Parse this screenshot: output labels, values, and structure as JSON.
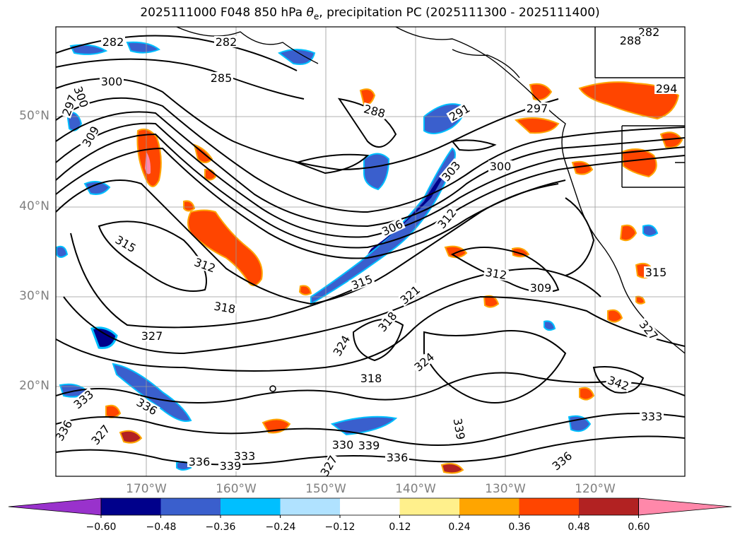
{
  "title": {
    "init": "2025111000 F048 850 hPa ",
    "theta_sym": "θ",
    "theta_sub": "e",
    "rest": ", precipitation PC (2025111300 - 2025111400)"
  },
  "axes": {
    "lat_labels": [
      "50°N",
      "40°N",
      "30°N",
      "20°N"
    ],
    "lon_labels": [
      "170°W",
      "160°W",
      "150°W",
      "140°W",
      "130°W",
      "120°W"
    ]
  },
  "colorbar": {
    "ticks": [
      "−0.60",
      "−0.48",
      "−0.36",
      "−0.24",
      "−0.12",
      "0.12",
      "0.24",
      "0.36",
      "0.48",
      "0.60"
    ],
    "colors": [
      "#9932cc",
      "#00008b",
      "#3a5fcd",
      "#00bfff",
      "#b0e2ff",
      "#ffffff",
      "#fff08c",
      "#ffa500",
      "#ff4500",
      "#b22222",
      "#ff88aa"
    ]
  },
  "contour_labels": [
    {
      "text": "282"
    },
    {
      "text": "282"
    },
    {
      "text": "285"
    },
    {
      "text": "300"
    },
    {
      "text": "297"
    },
    {
      "text": "300"
    },
    {
      "text": "309"
    },
    {
      "text": "288"
    },
    {
      "text": "291"
    },
    {
      "text": "282"
    },
    {
      "text": "288"
    },
    {
      "text": "294"
    },
    {
      "text": "297"
    },
    {
      "text": "300"
    },
    {
      "text": "303"
    },
    {
      "text": "306"
    },
    {
      "text": "312"
    },
    {
      "text": "315"
    },
    {
      "text": "312"
    },
    {
      "text": "318"
    },
    {
      "text": "315"
    },
    {
      "text": "321"
    },
    {
      "text": "318"
    },
    {
      "text": "324"
    },
    {
      "text": "312"
    },
    {
      "text": "309"
    },
    {
      "text": "315"
    },
    {
      "text": "327"
    },
    {
      "text": "327"
    },
    {
      "text": "324"
    },
    {
      "text": "318"
    },
    {
      "text": "333"
    },
    {
      "text": "336"
    },
    {
      "text": "327"
    },
    {
      "text": "330"
    },
    {
      "text": "339"
    },
    {
      "text": "336"
    },
    {
      "text": "339"
    },
    {
      "text": "336"
    },
    {
      "text": "333"
    },
    {
      "text": "339"
    },
    {
      "text": "336"
    },
    {
      "text": "342"
    },
    {
      "text": "333"
    },
    {
      "text": "327"
    },
    {
      "text": "336"
    }
  ]
}
